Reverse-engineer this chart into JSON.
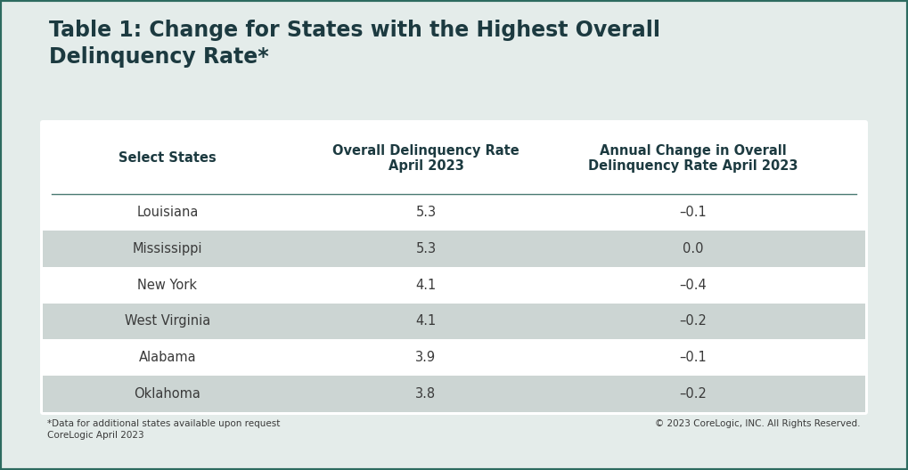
{
  "title_line1": "Table 1: Change for States with the Highest Overall",
  "title_line2": "Delinquency Rate*",
  "col_headers": [
    "Select States",
    "Overall Delinquency Rate\nApril 2023",
    "Annual Change in Overall\nDelinquency Rate April 2023"
  ],
  "rows": [
    [
      "Louisiana",
      "5.3",
      "–0.1"
    ],
    [
      "Mississippi",
      "5.3",
      "0.0"
    ],
    [
      "New York",
      "4.1",
      "–0.4"
    ],
    [
      "West Virginia",
      "4.1",
      "–0.2"
    ],
    [
      "Alabama",
      "3.9",
      "–0.1"
    ],
    [
      "Oklahoma",
      "3.8",
      "–0.2"
    ]
  ],
  "shaded_rows": [
    1,
    3,
    5
  ],
  "background_color": "#e4ecea",
  "table_bg_color": "#ffffff",
  "shaded_row_color": "#ccd5d3",
  "header_text_color": "#1c3a40",
  "title_color": "#1c3a40",
  "row_text_color": "#3a3a3a",
  "footer_left": "*Data for additional states available upon request\nCoreLogic April 2023",
  "footer_right": "© 2023 CoreLogic, INC. All Rights Reserved.",
  "header_separator_color": "#4a7a72",
  "title_fontsize": 17,
  "header_fontsize": 10.5,
  "row_fontsize": 10.5,
  "footer_fontsize": 7.5,
  "border_color": "#2d6b60"
}
